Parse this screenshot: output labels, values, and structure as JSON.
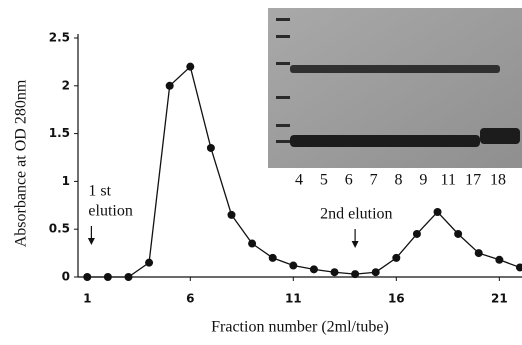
{
  "chart_data": {
    "type": "line",
    "x_label": "Fraction number (2ml/tube)",
    "y_label": "Absorbance at OD 280nm",
    "x": [
      1,
      2,
      3,
      4,
      5,
      6,
      7,
      8,
      9,
      10,
      11,
      12,
      13,
      14,
      15,
      16,
      17,
      18,
      19,
      20,
      21,
      22
    ],
    "series": [
      {
        "color": "#111111",
        "values": [
          0,
          0,
          0,
          0.15,
          2.0,
          2.2,
          1.35,
          0.65,
          0.35,
          0.2,
          0.12,
          0.08,
          0.05,
          0.03,
          0.05,
          0.2,
          0.45,
          0.68,
          0.45,
          0.25,
          0.18,
          0.1
        ]
      }
    ],
    "xlim": [
      0.55,
      22.1
    ],
    "xticks": [
      1,
      6,
      11,
      16,
      21
    ],
    "ylim": [
      0,
      2.5
    ],
    "yticks": [
      0,
      0.5,
      1,
      1.5,
      2,
      2.5
    ],
    "grid": false,
    "annotations": [
      {
        "text_lines": [
          "1 st",
          "elution"
        ],
        "x": 1.2
      },
      {
        "text_lines": [
          "2nd elution"
        ],
        "x": 14
      }
    ],
    "gel_lanes": [
      "4",
      "5",
      "6",
      "7",
      "8",
      "9",
      "11",
      "17",
      "18"
    ]
  }
}
